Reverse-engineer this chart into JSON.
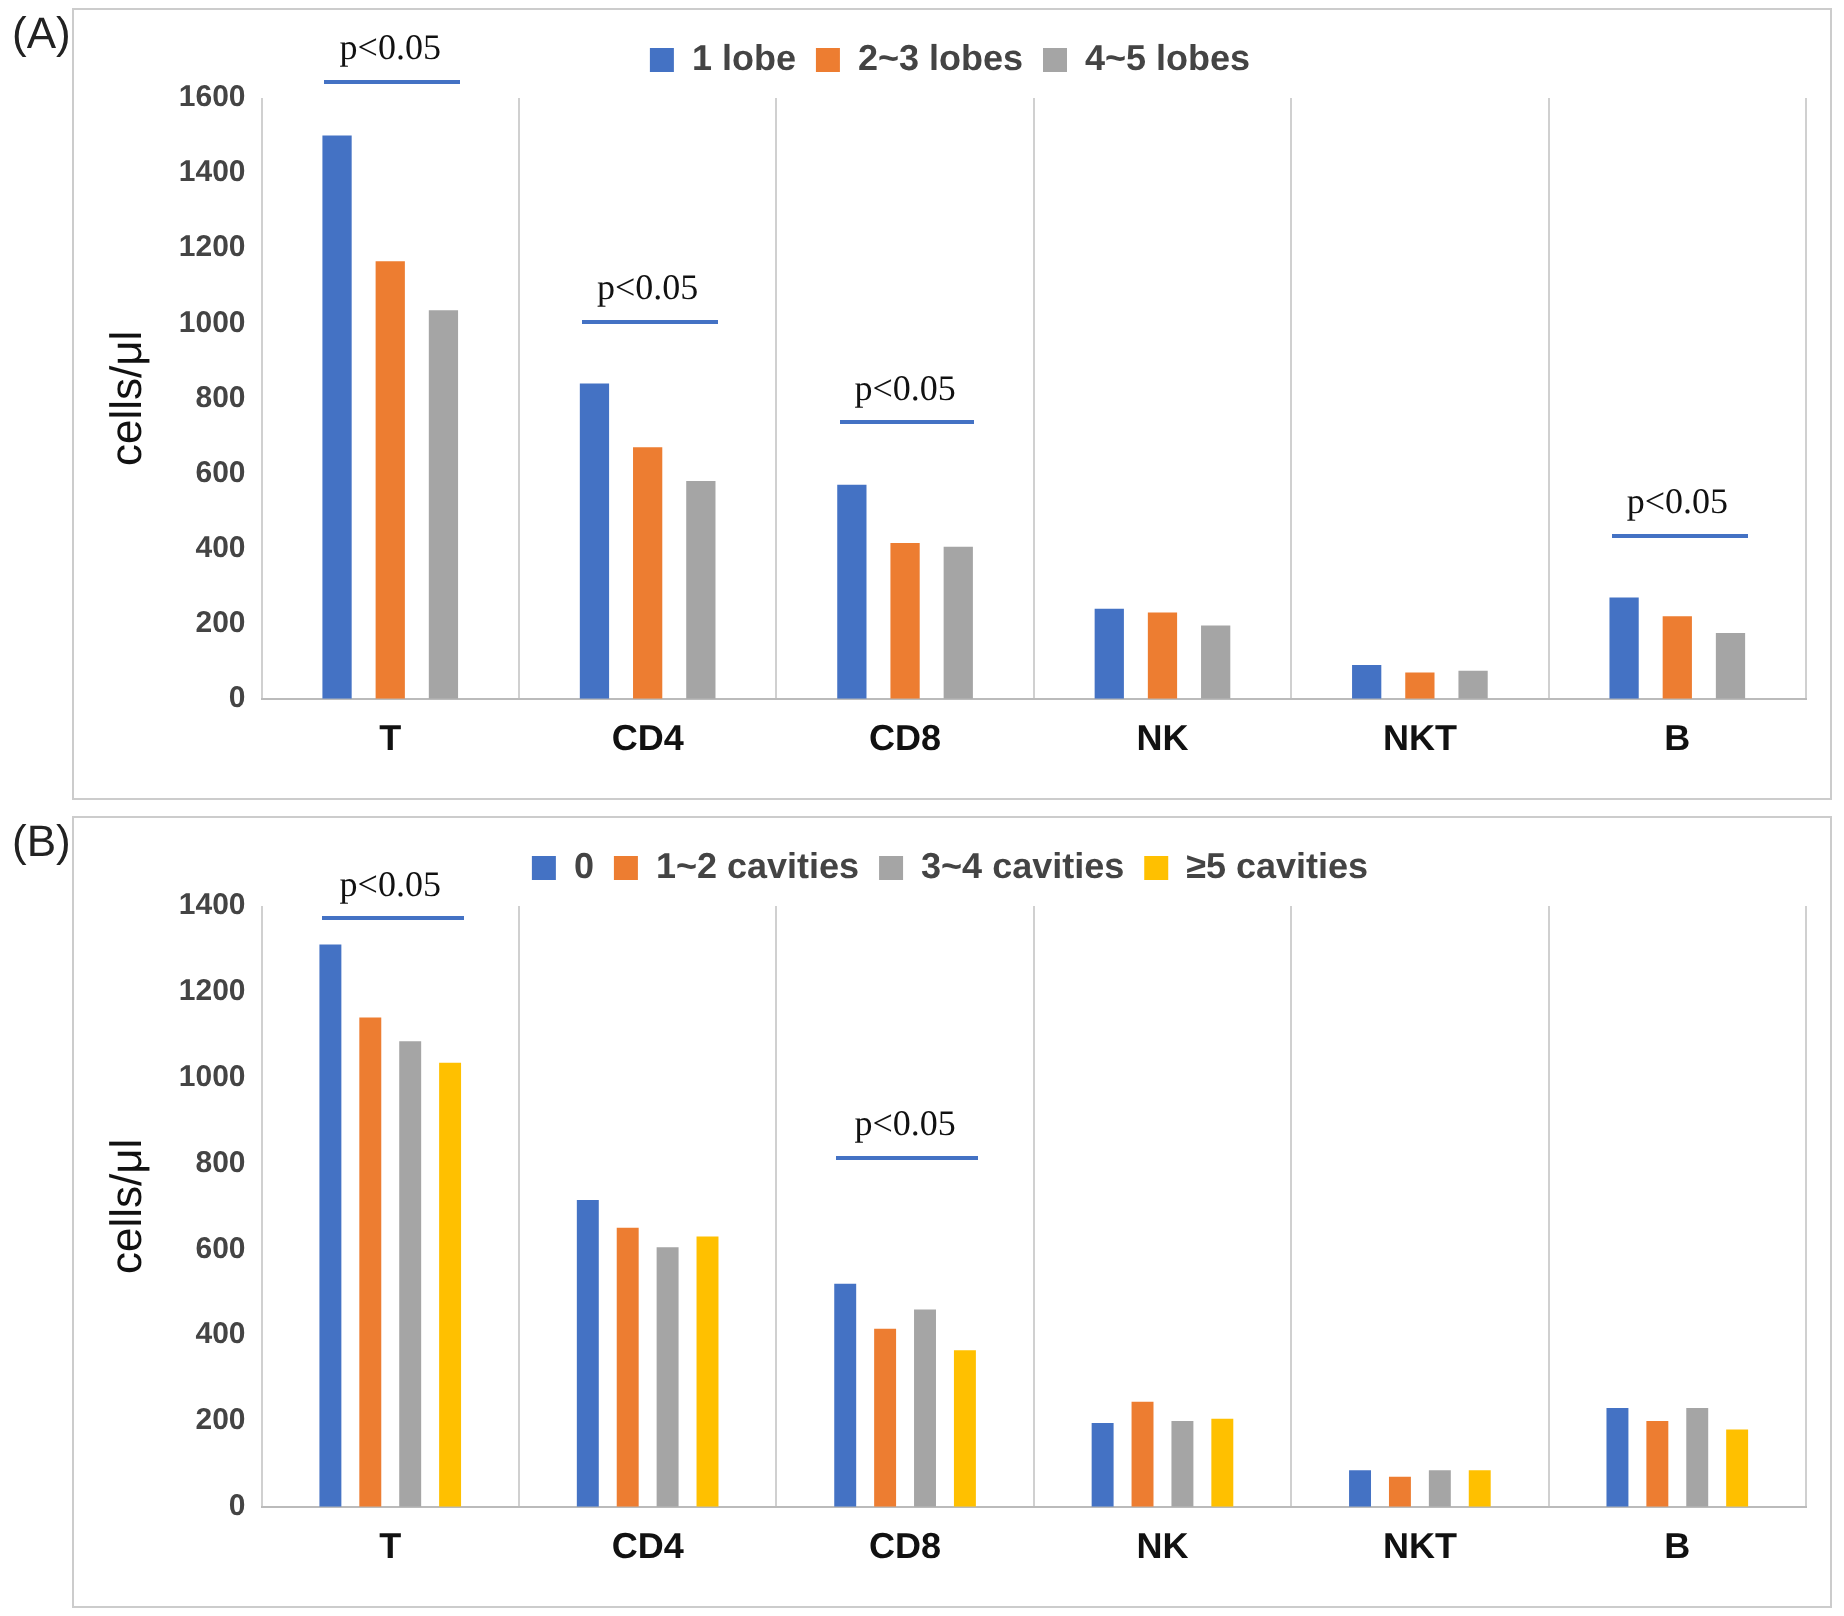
{
  "chart_data": [
    {
      "type": "bar",
      "title": "(A)",
      "ylabel": "cells/μl",
      "categories": [
        "T",
        "CD4",
        "CD8",
        "NK",
        "NKT",
        "B"
      ],
      "series": [
        {
          "name": "1 lobe",
          "color": "#4472c4",
          "values": [
            1500,
            840,
            570,
            240,
            90,
            270
          ]
        },
        {
          "name": "2~3 lobes",
          "color": "#ed7d31",
          "values": [
            1165,
            670,
            415,
            230,
            70,
            220
          ]
        },
        {
          "name": "4~5 lobes",
          "color": "#a5a5a5",
          "values": [
            1035,
            580,
            405,
            195,
            75,
            175
          ]
        }
      ],
      "ylim": [
        0,
        1600
      ],
      "yticks": [
        0,
        200,
        400,
        600,
        800,
        1000,
        1200,
        1400,
        1600
      ],
      "grid": "x",
      "legend": "top",
      "annotations": [
        "p<0.05",
        "p<0.05",
        "p<0.05",
        "p<0.05"
      ]
    },
    {
      "type": "bar",
      "title": "(B)",
      "ylabel": "cells/μl",
      "categories": [
        "T",
        "CD4",
        "CD8",
        "NK",
        "NKT",
        "B"
      ],
      "series": [
        {
          "name": "0",
          "color": "#4472c4",
          "values": [
            1310,
            715,
            520,
            195,
            85,
            230
          ]
        },
        {
          "name": "1~2 cavities",
          "color": "#ed7d31",
          "values": [
            1140,
            650,
            415,
            245,
            70,
            200
          ]
        },
        {
          "name": "3~4 cavities",
          "color": "#a5a5a5",
          "values": [
            1085,
            605,
            460,
            200,
            85,
            230
          ]
        },
        {
          "name": "≥5 cavities",
          "color": "#ffc000",
          "values": [
            1035,
            630,
            365,
            205,
            85,
            180
          ]
        }
      ],
      "ylim": [
        0,
        1400
      ],
      "yticks": [
        0,
        200,
        400,
        600,
        800,
        1000,
        1200,
        1400
      ],
      "grid": "x",
      "legend": "top",
      "annotations": [
        "p<0.05",
        "p<0.05"
      ]
    }
  ]
}
